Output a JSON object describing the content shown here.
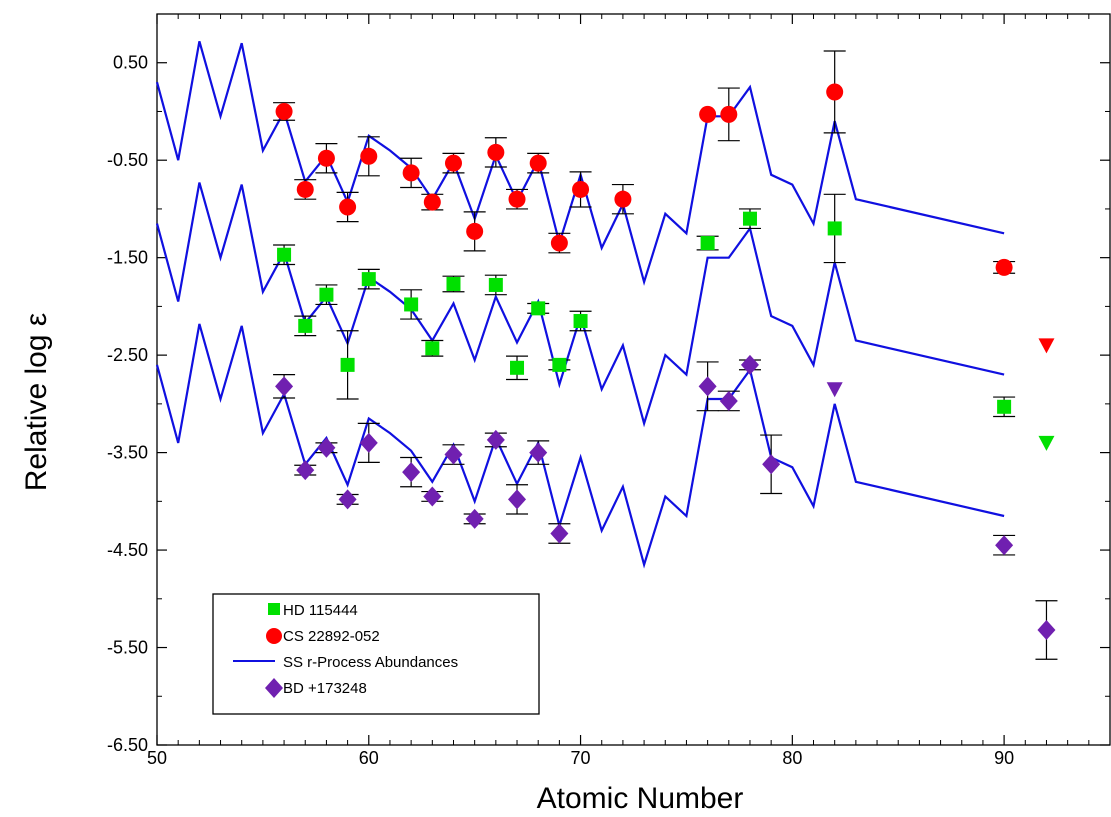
{
  "chart_data": {
    "type": "scatter",
    "xlabel": "Atomic Number",
    "ylabel": "Relative log ε",
    "xlim": [
      50,
      95
    ],
    "ylim": [
      -6.5,
      1.0
    ],
    "x_ticks": [
      50,
      60,
      70,
      80,
      90
    ],
    "x_tick_labels": [
      "50",
      "60",
      "70",
      "80",
      "90"
    ],
    "y_ticks": [
      0.5,
      -0.5,
      -1.5,
      -2.5,
      -3.5,
      -4.5,
      -5.5,
      -6.5
    ],
    "y_tick_labels": [
      "0.50",
      "-0.50",
      "-1.50",
      "-2.50",
      "-3.50",
      "-4.50",
      "-5.50",
      "-6.50"
    ],
    "grid": false,
    "legend_position": "bottom-left",
    "legend": [
      {
        "label": "HD 115444",
        "marker": "square",
        "color": "#00e000"
      },
      {
        "label": "CS 22892-052",
        "marker": "circle",
        "color": "#ff0000"
      },
      {
        "label": "SS r-Process Abundances",
        "marker": "line",
        "color": "#1010e0"
      },
      {
        "label": "BD +173248",
        "marker": "diamond",
        "color": "#7020b0"
      }
    ],
    "lines": [
      {
        "name": "SS r-Process Abundances",
        "color": "#1010e0",
        "offset": 0.0
      },
      {
        "name": "SS r-Process Abundances",
        "color": "#1010e0",
        "offset": -1.45
      },
      {
        "name": "SS r-Process Abundances",
        "color": "#1010e0",
        "offset": -2.9
      }
    ],
    "ss_curve": {
      "x": [
        50,
        51,
        52,
        53,
        54,
        55,
        56,
        57,
        58,
        59,
        60,
        61,
        62,
        63,
        64,
        65,
        66,
        67,
        68,
        69,
        70,
        71,
        72,
        73,
        74,
        75,
        76,
        77,
        78,
        79,
        80,
        81,
        82,
        83,
        90
      ],
      "y": [
        0.3,
        -0.5,
        0.72,
        -0.05,
        0.7,
        -0.4,
        0.0,
        -0.72,
        -0.45,
        -0.93,
        -0.25,
        -0.4,
        -0.58,
        -0.9,
        -0.52,
        -1.1,
        -0.45,
        -0.92,
        -0.5,
        -1.35,
        -0.65,
        -1.4,
        -0.95,
        -1.75,
        -1.05,
        -1.25,
        -0.05,
        -0.05,
        0.25,
        -0.65,
        -0.75,
        -1.15,
        -0.1,
        -0.9,
        -1.25
      ]
    },
    "series": [
      {
        "name": "CS 22892-052",
        "marker": "circle",
        "color": "#ff0000",
        "points": [
          {
            "x": 56,
            "y": 0.0,
            "err": 0.09
          },
          {
            "x": 57,
            "y": -0.8,
            "err": 0.1
          },
          {
            "x": 58,
            "y": -0.48,
            "err": 0.15
          },
          {
            "x": 59,
            "y": -0.98,
            "err": 0.15
          },
          {
            "x": 60,
            "y": -0.46,
            "err": 0.2
          },
          {
            "x": 62,
            "y": -0.63,
            "err": 0.15
          },
          {
            "x": 63,
            "y": -0.93,
            "err": 0.08
          },
          {
            "x": 64,
            "y": -0.53,
            "err": 0.1
          },
          {
            "x": 65,
            "y": -1.23,
            "err": 0.2
          },
          {
            "x": 66,
            "y": -0.42,
            "err": 0.15
          },
          {
            "x": 67,
            "y": -0.9,
            "err": 0.1
          },
          {
            "x": 68,
            "y": -0.53,
            "err": 0.1
          },
          {
            "x": 69,
            "y": -1.35,
            "err": 0.1
          },
          {
            "x": 70,
            "y": -0.8,
            "err": 0.18
          },
          {
            "x": 72,
            "y": -0.9,
            "err": 0.15
          },
          {
            "x": 76,
            "y": -0.03,
            "err": 0.0
          },
          {
            "x": 77,
            "y": -0.03,
            "err": 0.27
          },
          {
            "x": 82,
            "y": 0.2,
            "err": 0.42
          },
          {
            "x": 90,
            "y": -1.6,
            "err": 0.06
          }
        ],
        "upper_limits": [
          {
            "x": 92,
            "y": -2.4
          }
        ]
      },
      {
        "name": "HD 115444",
        "marker": "square",
        "color": "#00e000",
        "points": [
          {
            "x": 56,
            "y": -1.47,
            "err": 0.1
          },
          {
            "x": 57,
            "y": -2.2,
            "err": 0.1
          },
          {
            "x": 58,
            "y": -1.88,
            "err": 0.1
          },
          {
            "x": 59,
            "y": -2.6,
            "err": 0.35
          },
          {
            "x": 60,
            "y": -1.72,
            "err": 0.1
          },
          {
            "x": 62,
            "y": -1.98,
            "err": 0.15
          },
          {
            "x": 63,
            "y": -2.43,
            "err": 0.08
          },
          {
            "x": 64,
            "y": -1.77,
            "err": 0.08
          },
          {
            "x": 66,
            "y": -1.78,
            "err": 0.1
          },
          {
            "x": 67,
            "y": -2.63,
            "err": 0.12
          },
          {
            "x": 68,
            "y": -2.02,
            "err": 0.05
          },
          {
            "x": 69,
            "y": -2.6,
            "err": 0.05
          },
          {
            "x": 70,
            "y": -2.15,
            "err": 0.1
          },
          {
            "x": 76,
            "y": -1.35,
            "err": 0.07
          },
          {
            "x": 78,
            "y": -1.1,
            "err": 0.1
          },
          {
            "x": 82,
            "y": -1.2,
            "err": 0.35
          },
          {
            "x": 90,
            "y": -3.03,
            "err": 0.1
          }
        ],
        "upper_limits": [
          {
            "x": 92,
            "y": -3.4
          }
        ]
      },
      {
        "name": "BD +173248",
        "marker": "diamond",
        "color": "#7020b0",
        "points": [
          {
            "x": 56,
            "y": -2.82,
            "err": 0.12
          },
          {
            "x": 57,
            "y": -3.68,
            "err": 0.05
          },
          {
            "x": 58,
            "y": -3.45,
            "err": 0.05
          },
          {
            "x": 59,
            "y": -3.98,
            "err": 0.05
          },
          {
            "x": 60,
            "y": -3.4,
            "err": 0.2
          },
          {
            "x": 62,
            "y": -3.7,
            "err": 0.15
          },
          {
            "x": 63,
            "y": -3.95,
            "err": 0.05
          },
          {
            "x": 64,
            "y": -3.52,
            "err": 0.1
          },
          {
            "x": 65,
            "y": -4.18,
            "err": 0.05
          },
          {
            "x": 66,
            "y": -3.37,
            "err": 0.07
          },
          {
            "x": 67,
            "y": -3.98,
            "err": 0.15
          },
          {
            "x": 68,
            "y": -3.5,
            "err": 0.12
          },
          {
            "x": 69,
            "y": -4.33,
            "err": 0.1
          },
          {
            "x": 76,
            "y": -2.82,
            "err": 0.25
          },
          {
            "x": 77,
            "y": -2.97,
            "err": 0.1
          },
          {
            "x": 78,
            "y": -2.6,
            "err": 0.05
          },
          {
            "x": 79,
            "y": -3.62,
            "err": 0.3
          },
          {
            "x": 90,
            "y": -4.45,
            "err": 0.1
          },
          {
            "x": 92,
            "y": -5.32,
            "err": 0.3
          }
        ],
        "upper_limits": [
          {
            "x": 82,
            "y": -2.85
          }
        ]
      }
    ]
  }
}
